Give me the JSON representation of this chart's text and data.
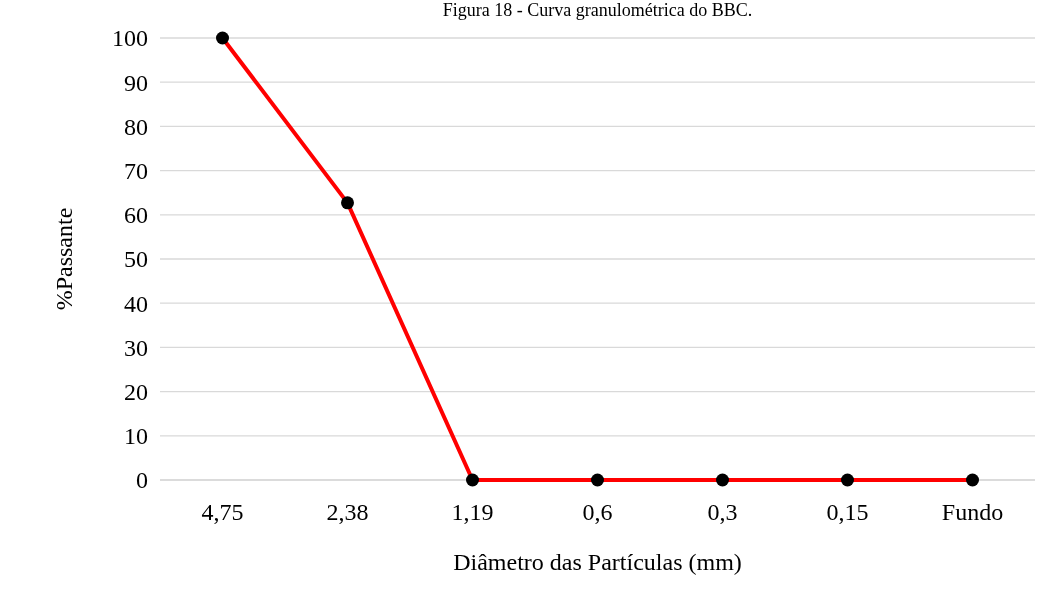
{
  "chart_data": {
    "type": "line",
    "title": "Figura 18 - Curva granulométrica do BBC.",
    "xlabel": "Diâmetro das Partículas (mm)",
    "ylabel": "%Passante",
    "categories": [
      "4,75",
      "2,38",
      "1,19",
      "0,6",
      "0,3",
      "0,15",
      "Fundo"
    ],
    "series": [
      {
        "color": "#ff0000",
        "values": [
          100,
          62.7,
          0,
          0,
          0,
          0,
          0
        ]
      }
    ],
    "ylim": [
      0,
      100
    ],
    "yticks": [
      0,
      10,
      20,
      30,
      40,
      50,
      60,
      70,
      80,
      90,
      100
    ],
    "grid": "y",
    "marker": "circle",
    "line_style": "solid"
  }
}
